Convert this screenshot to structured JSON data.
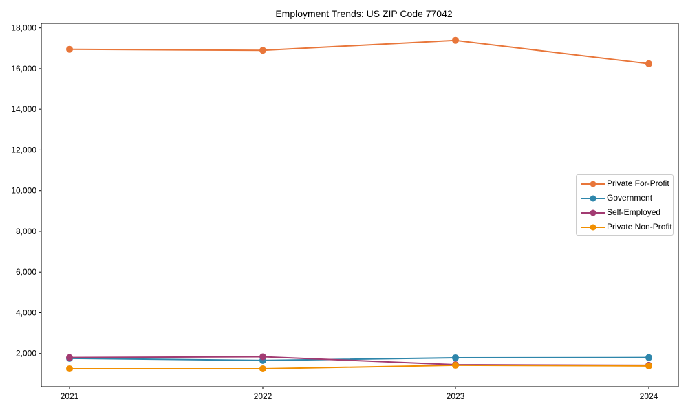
{
  "chart_data": {
    "type": "line",
    "title": "Employment Trends: US ZIP Code 77042",
    "xlabel": "",
    "ylabel": "",
    "categories": [
      "2021",
      "2022",
      "2023",
      "2024"
    ],
    "ylim": [
      0,
      18200
    ],
    "yticks": [
      2000,
      4000,
      6000,
      8000,
      10000,
      12000,
      14000,
      16000,
      18000
    ],
    "ytick_labels": [
      "2,000",
      "4,000",
      "6,000",
      "8,000",
      "10,000",
      "12,000",
      "14,000",
      "16,000",
      "18,000"
    ],
    "grid": false,
    "legend_position": "center right",
    "series": [
      {
        "name": "Private For-Profit",
        "color": "#E8763A",
        "values": [
          16950,
          16900,
          17390,
          16240
        ]
      },
      {
        "name": "Government",
        "color": "#2E86AB",
        "values": [
          1760,
          1660,
          1790,
          1800
        ]
      },
      {
        "name": "Self-Employed",
        "color": "#A23B72",
        "values": [
          1800,
          1840,
          1450,
          1420
        ]
      },
      {
        "name": "Private Non-Profit",
        "color": "#F18F01",
        "values": [
          1250,
          1250,
          1420,
          1390
        ]
      }
    ]
  }
}
